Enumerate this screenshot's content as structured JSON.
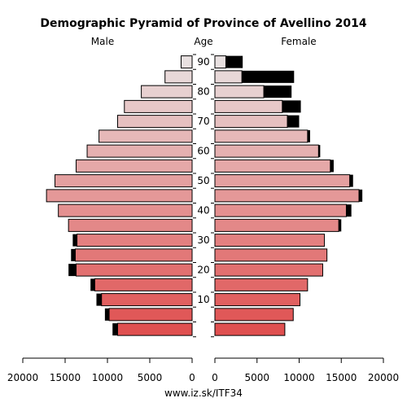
{
  "chart_data": {
    "type": "bar",
    "title": "Demographic Pyramid of Province of Avellino 2014",
    "left_label": "Male",
    "center_label": "Age",
    "right_label": "Female",
    "footer": "www.iz.sk/ITF34",
    "age_ticks": [
      "10",
      "20",
      "30",
      "40",
      "50",
      "60",
      "70",
      "80",
      "90"
    ],
    "x_ticks": [
      "20000",
      "15000",
      "10000",
      "5000",
      "0"
    ],
    "x_ticks_right": [
      "0",
      "5000",
      "10000",
      "15000",
      "20000"
    ],
    "xlim": [
      0,
      20000
    ],
    "age_groups": [
      "0-4",
      "5-9",
      "10-14",
      "15-19",
      "20-24",
      "25-29",
      "30-34",
      "35-39",
      "40-44",
      "45-49",
      "50-54",
      "55-59",
      "60-64",
      "65-69",
      "70-74",
      "75-79",
      "80-84",
      "85-89",
      "90+"
    ],
    "series": [
      {
        "name": "Male",
        "values": [
          8800,
          9800,
          10700,
          11500,
          13700,
          13800,
          13600,
          14600,
          15800,
          17200,
          16200,
          13700,
          12400,
          11000,
          8800,
          8000,
          6000,
          3200,
          1300
        ],
        "excess": [
          600,
          500,
          600,
          500,
          900,
          500,
          500,
          0,
          0,
          0,
          0,
          0,
          0,
          0,
          0,
          0,
          0,
          0,
          0
        ]
      },
      {
        "name": "Female",
        "values": [
          8300,
          9300,
          10100,
          11000,
          12800,
          13300,
          13000,
          14700,
          15600,
          17100,
          16000,
          13700,
          12300,
          11000,
          8600,
          8000,
          5800,
          3200,
          1300
        ],
        "excess": [
          0,
          0,
          0,
          0,
          0,
          0,
          0,
          300,
          600,
          400,
          400,
          400,
          200,
          300,
          1400,
          2200,
          3300,
          6200,
          2000
        ]
      }
    ],
    "colors": {
      "young": "#e05050",
      "old": "#e8e0e0",
      "excess": "#000000"
    }
  }
}
